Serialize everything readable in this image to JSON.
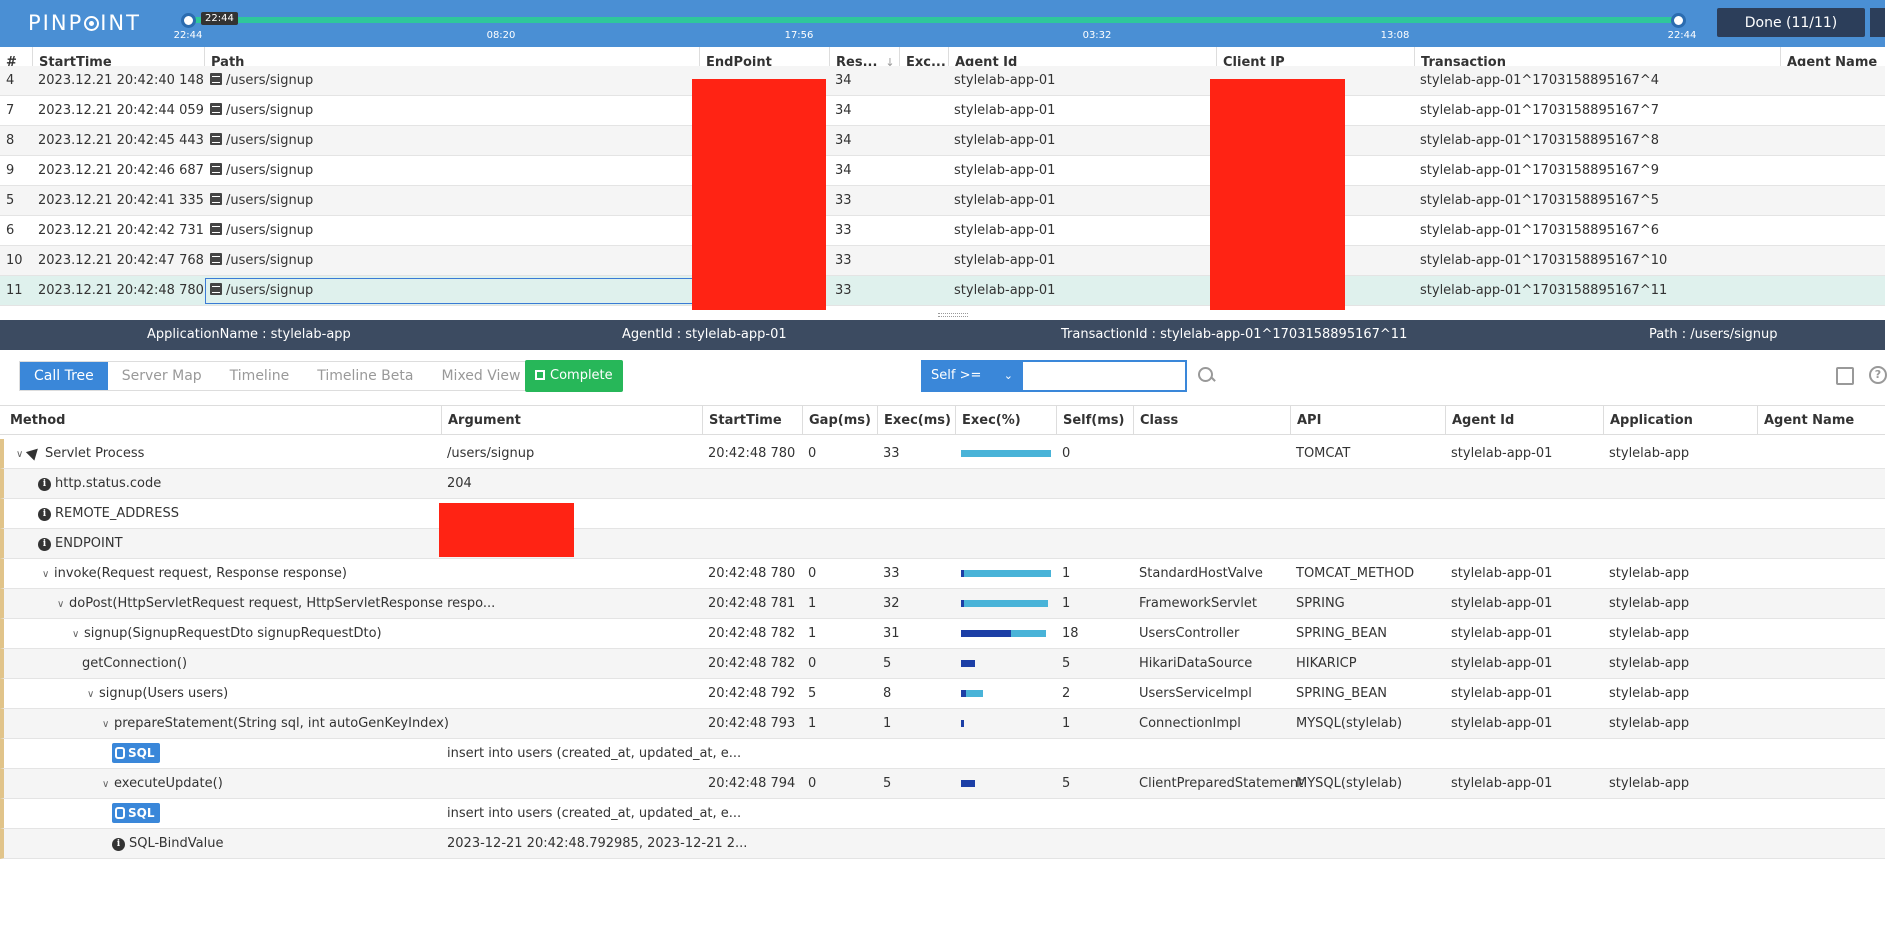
{
  "app": {
    "logo": "PINPOINT"
  },
  "timeline": {
    "tooltip": "22:44",
    "ticks": [
      "22:44",
      "08:20",
      "17:56",
      "03:32",
      "13:08",
      "22:44"
    ],
    "done_label": "Done (11/11)"
  },
  "transactions": {
    "columns": [
      "#",
      "StartTime",
      "Path",
      "EndPoint",
      "Res...",
      "Exc...",
      "Agent Id",
      "Client IP",
      "Transaction",
      "Agent Name"
    ],
    "sort_indicator": "↓",
    "rows": [
      {
        "no": "4",
        "start": "2023.12.21 20:42:40 148",
        "path": "/users/signup",
        "res": "34",
        "agent": "stylelab-app-01",
        "tx": "stylelab-app-01^1703158895167^4"
      },
      {
        "no": "7",
        "start": "2023.12.21 20:42:44 059",
        "path": "/users/signup",
        "res": "34",
        "agent": "stylelab-app-01",
        "tx": "stylelab-app-01^1703158895167^7"
      },
      {
        "no": "8",
        "start": "2023.12.21 20:42:45 443",
        "path": "/users/signup",
        "res": "34",
        "agent": "stylelab-app-01",
        "tx": "stylelab-app-01^1703158895167^8"
      },
      {
        "no": "9",
        "start": "2023.12.21 20:42:46 687",
        "path": "/users/signup",
        "res": "34",
        "agent": "stylelab-app-01",
        "tx": "stylelab-app-01^1703158895167^9"
      },
      {
        "no": "5",
        "start": "2023.12.21 20:42:41 335",
        "path": "/users/signup",
        "res": "33",
        "agent": "stylelab-app-01",
        "tx": "stylelab-app-01^1703158895167^5"
      },
      {
        "no": "6",
        "start": "2023.12.21 20:42:42 731",
        "path": "/users/signup",
        "res": "33",
        "agent": "stylelab-app-01",
        "tx": "stylelab-app-01^1703158895167^6"
      },
      {
        "no": "10",
        "start": "2023.12.21 20:42:47 768",
        "path": "/users/signup",
        "res": "33",
        "agent": "stylelab-app-01",
        "tx": "stylelab-app-01^1703158895167^10"
      },
      {
        "no": "11",
        "start": "2023.12.21 20:42:48 780",
        "path": "/users/signup",
        "res": "33",
        "agent": "stylelab-app-01",
        "tx": "stylelab-app-01^1703158895167^11"
      }
    ]
  },
  "infobar": {
    "application": "ApplicationName : stylelab-app",
    "agent": "AgentId : stylelab-app-01",
    "transaction": "TransactionId : stylelab-app-01^1703158895167^11",
    "path": "Path : /users/signup"
  },
  "toolbar": {
    "tabs": [
      "Call Tree",
      "Server Map",
      "Timeline",
      "Timeline Beta",
      "Mixed View"
    ],
    "complete_label": "Complete",
    "self_filter_label": "Self >=",
    "self_filter_value": ""
  },
  "calltree": {
    "columns": [
      "Method",
      "Argument",
      "StartTime",
      "Gap(ms)",
      "Exec(ms)",
      "Exec(%)",
      "Self(ms)",
      "Class",
      "API",
      "Agent Id",
      "Application",
      "Agent Name"
    ],
    "rows": [
      {
        "method": "Servlet Process",
        "arg": "/users/signup",
        "start": "20:42:48 780",
        "gap": "0",
        "exec": "33",
        "self": "0",
        "cls": "",
        "api": "TOMCAT",
        "agent": "stylelab-app-01",
        "app": "stylelab-app",
        "exec_pct": 1.0,
        "self_pct": 0.0
      },
      {
        "method": "http.status.code",
        "arg": "204",
        "start": "",
        "gap": "",
        "exec": "",
        "self": "",
        "cls": "",
        "api": "",
        "agent": "",
        "app": ""
      },
      {
        "method": "REMOTE_ADDRESS",
        "arg": "",
        "start": "",
        "gap": "",
        "exec": "",
        "self": "",
        "cls": "",
        "api": "",
        "agent": "",
        "app": ""
      },
      {
        "method": "ENDPOINT",
        "arg": "",
        "start": "",
        "gap": "",
        "exec": "",
        "self": "",
        "cls": "",
        "api": "",
        "agent": "",
        "app": ""
      },
      {
        "method": "invoke(Request request, Response response)",
        "arg": "",
        "start": "20:42:48 780",
        "gap": "0",
        "exec": "33",
        "self": "1",
        "cls": "StandardHostValve",
        "api": "TOMCAT_METHOD",
        "agent": "stylelab-app-01",
        "app": "stylelab-app",
        "exec_pct": 1.0,
        "self_pct": 0.03
      },
      {
        "method": "doPost(HttpServletRequest request, HttpServletResponse respo...",
        "arg": "",
        "start": "20:42:48 781",
        "gap": "1",
        "exec": "32",
        "self": "1",
        "cls": "FrameworkServlet",
        "api": "SPRING",
        "agent": "stylelab-app-01",
        "app": "stylelab-app",
        "exec_pct": 0.97,
        "self_pct": 0.03
      },
      {
        "method": "signup(SignupRequestDto signupRequestDto)",
        "arg": "",
        "start": "20:42:48 782",
        "gap": "1",
        "exec": "31",
        "self": "18",
        "cls": "UsersController",
        "api": "SPRING_BEAN",
        "agent": "stylelab-app-01",
        "app": "stylelab-app",
        "exec_pct": 0.94,
        "self_pct": 0.55
      },
      {
        "method": "getConnection()",
        "arg": "",
        "start": "20:42:48 782",
        "gap": "0",
        "exec": "5",
        "self": "5",
        "cls": "HikariDataSource",
        "api": "HIKARICP",
        "agent": "stylelab-app-01",
        "app": "stylelab-app",
        "exec_pct": 0.15,
        "self_pct": 0.15
      },
      {
        "method": "signup(Users users)",
        "arg": "",
        "start": "20:42:48 792",
        "gap": "5",
        "exec": "8",
        "self": "2",
        "cls": "UsersServiceImpl",
        "api": "SPRING_BEAN",
        "agent": "stylelab-app-01",
        "app": "stylelab-app",
        "exec_pct": 0.24,
        "self_pct": 0.06
      },
      {
        "method": "prepareStatement(String sql, int autoGenKeyIndex)",
        "arg": "",
        "start": "20:42:48 793",
        "gap": "1",
        "exec": "1",
        "self": "1",
        "cls": "ConnectionImpl",
        "api": "MYSQL(stylelab)",
        "agent": "stylelab-app-01",
        "app": "stylelab-app",
        "exec_pct": 0.03,
        "self_pct": 0.03
      },
      {
        "method": "SQL",
        "arg": "insert into users (created_at, updated_at, e...",
        "start": "",
        "gap": "",
        "exec": "",
        "self": "",
        "cls": "",
        "api": "",
        "agent": "",
        "app": ""
      },
      {
        "method": "executeUpdate()",
        "arg": "",
        "start": "20:42:48 794",
        "gap": "0",
        "exec": "5",
        "self": "5",
        "cls": "ClientPreparedStatement",
        "api": "MYSQL(stylelab)",
        "agent": "stylelab-app-01",
        "app": "stylelab-app",
        "exec_pct": 0.15,
        "self_pct": 0.15
      },
      {
        "method": "SQL",
        "arg": "insert into users (created_at, updated_at, e...",
        "start": "",
        "gap": "",
        "exec": "",
        "self": "",
        "cls": "",
        "api": "",
        "agent": "",
        "app": ""
      },
      {
        "method": "SQL-BindValue",
        "arg": "2023-12-21 20:42:48.792985, 2023-12-21 2...",
        "start": "",
        "gap": "",
        "exec": "",
        "self": "",
        "cls": "",
        "api": "",
        "agent": "",
        "app": ""
      }
    ]
  },
  "colors": {
    "topbar": "#4a8fd4",
    "accent": "#3a87d9",
    "track": "#2fc79b",
    "complete": "#27b759",
    "redact": "#ff2314",
    "infobar": "#3c4b61"
  }
}
